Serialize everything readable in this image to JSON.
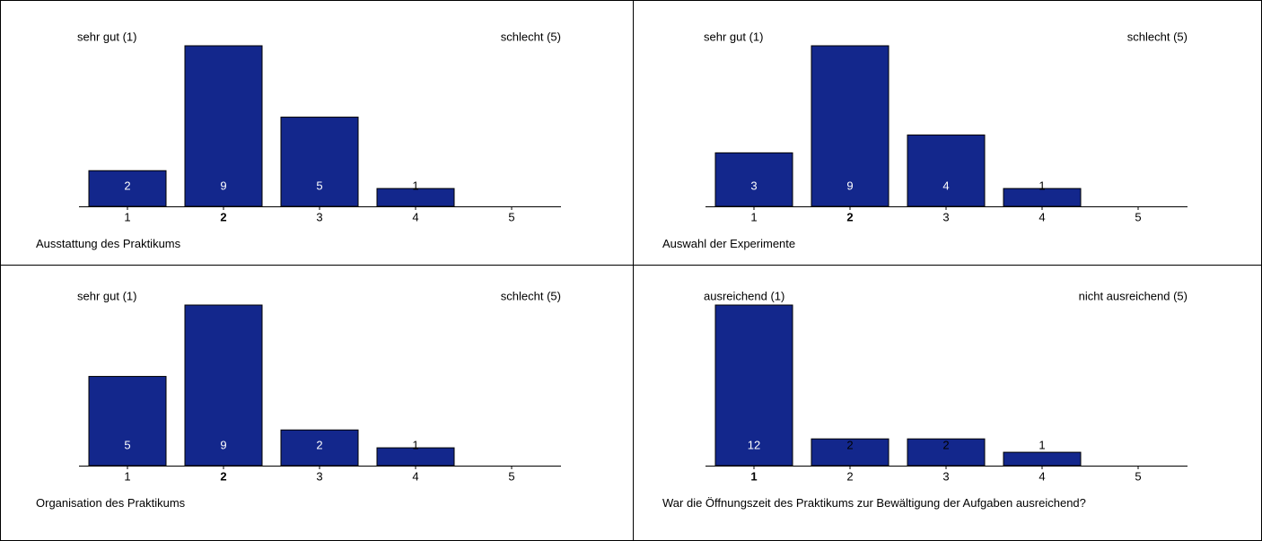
{
  "chart_data": [
    {
      "type": "bar",
      "title": "Ausstattung des Praktikums",
      "left_label": "sehr gut (1)",
      "right_label": "schlecht (5)",
      "categories": [
        "1",
        "2",
        "3",
        "4",
        "5"
      ],
      "values": [
        2,
        9,
        5,
        1,
        0
      ],
      "ylim": [
        0,
        9
      ],
      "color": "#13278c"
    },
    {
      "type": "bar",
      "title": "Auswahl der Experimente",
      "left_label": "sehr gut (1)",
      "right_label": "schlecht (5)",
      "categories": [
        "1",
        "2",
        "3",
        "4",
        "5"
      ],
      "values": [
        3,
        9,
        4,
        1,
        0
      ],
      "ylim": [
        0,
        9
      ],
      "color": "#13278c"
    },
    {
      "type": "bar",
      "title": "Organisation des Praktikums",
      "left_label": "sehr gut (1)",
      "right_label": "schlecht (5)",
      "categories": [
        "1",
        "2",
        "3",
        "4",
        "5"
      ],
      "values": [
        5,
        9,
        2,
        1,
        0
      ],
      "ylim": [
        0,
        9
      ],
      "color": "#13278c"
    },
    {
      "type": "bar",
      "title": "War die Öffnungszeit des Praktikums zur Bewältigung der Aufgaben ausreichend?",
      "left_label": "ausreichend (1)",
      "right_label": "nicht ausreichend (5)",
      "categories": [
        "1",
        "2",
        "3",
        "4",
        "5"
      ],
      "values": [
        12,
        2,
        2,
        1,
        0
      ],
      "ylim": [
        0,
        12
      ],
      "color": "#13278c"
    }
  ]
}
